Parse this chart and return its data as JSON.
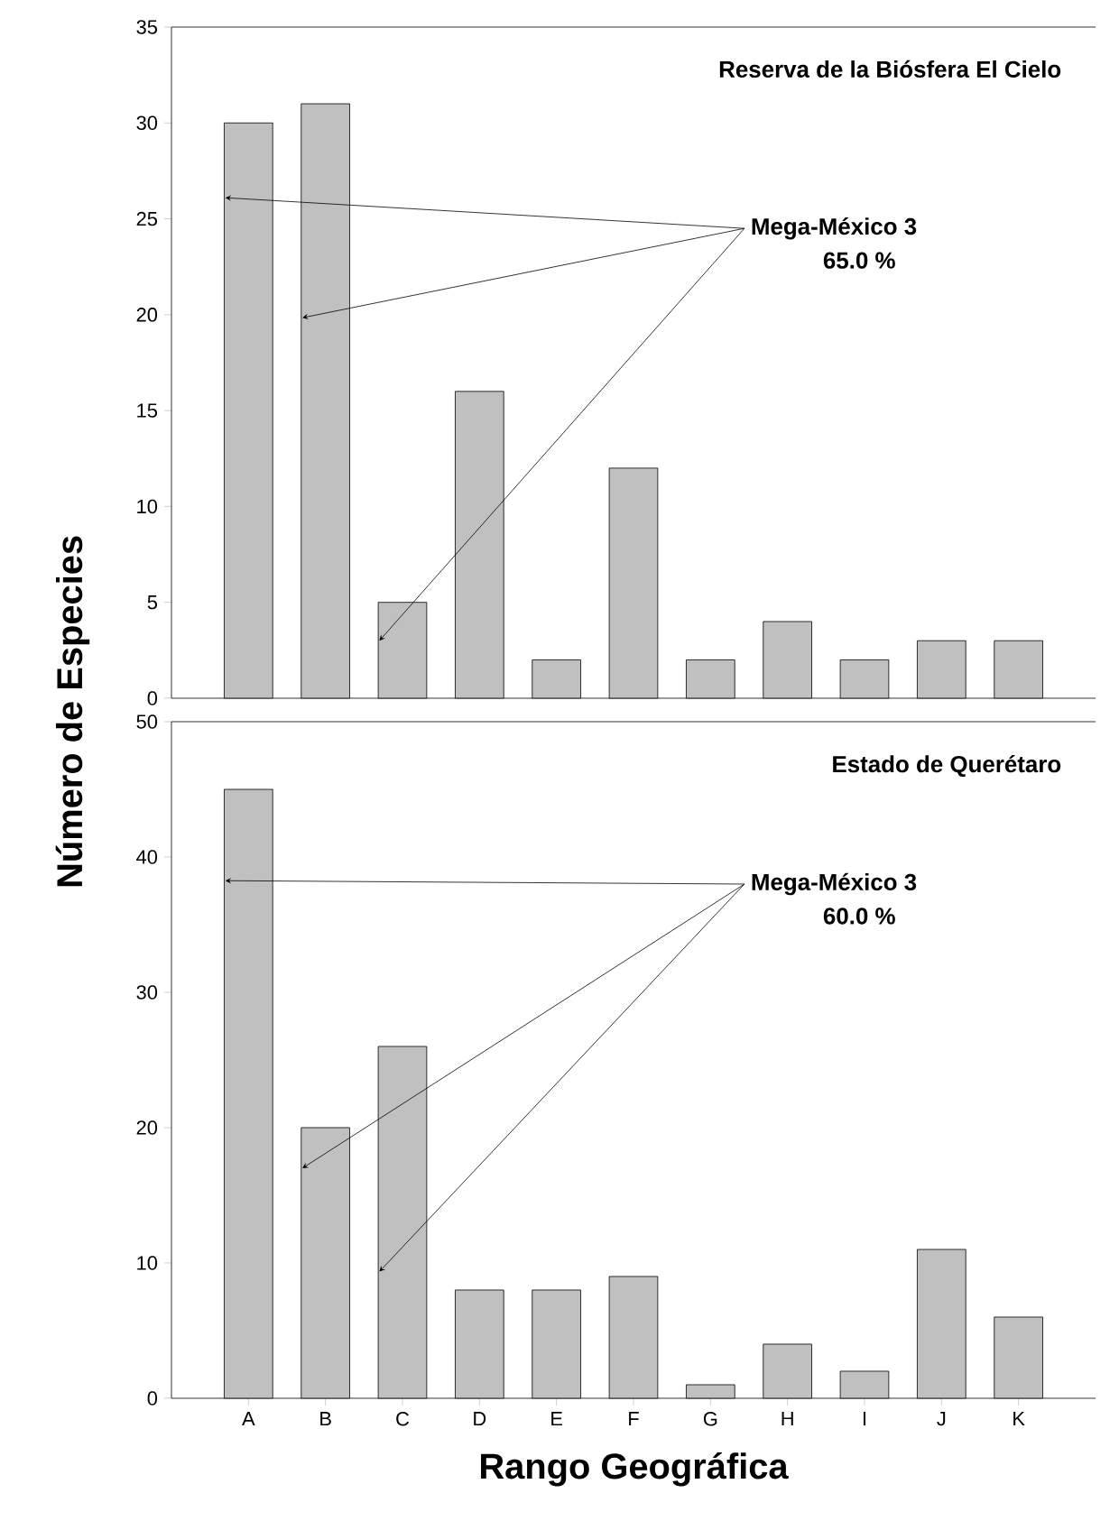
{
  "chart_data": [
    {
      "type": "bar",
      "categories": [
        null,
        null,
        null,
        null,
        null,
        null,
        null,
        null,
        null,
        null,
        null
      ],
      "values": [
        30,
        31,
        5,
        16,
        2,
        12,
        2,
        4,
        2,
        3,
        3
      ],
      "color": "#c0c0c0",
      "ylim": [
        0,
        35
      ],
      "yticks": [
        0,
        5,
        10,
        15,
        20,
        25,
        30,
        35
      ],
      "ylabel": "Número de Especies",
      "tick_labels": "y",
      "annotations": [
        "Reserva de la Biósfera El Cielo",
        "Mega-México 3",
        "65.0 %"
      ]
    },
    {
      "type": "bar",
      "categories": [
        "A",
        "B",
        "C",
        "D",
        "E",
        "F",
        "G",
        "H",
        "I",
        "J",
        "K"
      ],
      "values": [
        45,
        20,
        26,
        8,
        8,
        9,
        1,
        4,
        2,
        11,
        6
      ],
      "color": "#c0c0c0",
      "ylim": [
        0,
        50
      ],
      "yticks": [
        0,
        10,
        20,
        30,
        40,
        50
      ],
      "xlabel": "Rango Geográfica",
      "annotations": [
        "Estado de Querétaro",
        "Mega-México 3",
        "60.0 %"
      ]
    }
  ]
}
